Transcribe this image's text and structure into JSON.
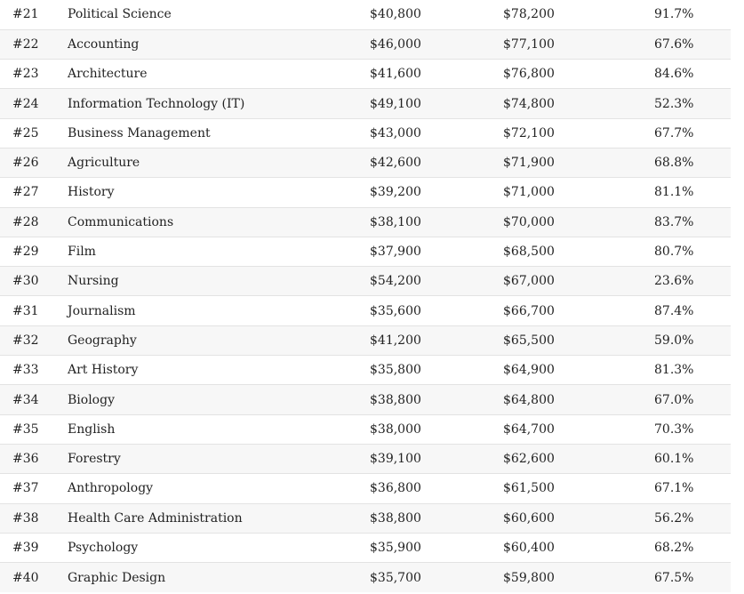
{
  "rows": [
    {
      "rank": "#21",
      "major": "Political Science",
      "early_pay": "$40,800",
      "mid_pay": "$78,200",
      "meaning": "91.7%"
    },
    {
      "rank": "#22",
      "major": "Accounting",
      "early_pay": "$46,000",
      "mid_pay": "$77,100",
      "meaning": "67.6%"
    },
    {
      "rank": "#23",
      "major": "Architecture",
      "early_pay": "$41,600",
      "mid_pay": "$76,800",
      "meaning": "84.6%"
    },
    {
      "rank": "#24",
      "major": "Information Technology (IT)",
      "early_pay": "$49,100",
      "mid_pay": "$74,800",
      "meaning": "52.3%"
    },
    {
      "rank": "#25",
      "major": "Business Management",
      "early_pay": "$43,000",
      "mid_pay": "$72,100",
      "meaning": "67.7%"
    },
    {
      "rank": "#26",
      "major": "Agriculture",
      "early_pay": "$42,600",
      "mid_pay": "$71,900",
      "meaning": "68.8%"
    },
    {
      "rank": "#27",
      "major": "History",
      "early_pay": "$39,200",
      "mid_pay": "$71,000",
      "meaning": "81.1%"
    },
    {
      "rank": "#28",
      "major": "Communications",
      "early_pay": "$38,100",
      "mid_pay": "$70,000",
      "meaning": "83.7%"
    },
    {
      "rank": "#29",
      "major": "Film",
      "early_pay": "$37,900",
      "mid_pay": "$68,500",
      "meaning": "80.7%"
    },
    {
      "rank": "#30",
      "major": "Nursing",
      "early_pay": "$54,200",
      "mid_pay": "$67,000",
      "meaning": "23.6%"
    },
    {
      "rank": "#31",
      "major": "Journalism",
      "early_pay": "$35,600",
      "mid_pay": "$66,700",
      "meaning": "87.4%"
    },
    {
      "rank": "#32",
      "major": "Geography",
      "early_pay": "$41,200",
      "mid_pay": "$65,500",
      "meaning": "59.0%"
    },
    {
      "rank": "#33",
      "major": "Art History",
      "early_pay": "$35,800",
      "mid_pay": "$64,900",
      "meaning": "81.3%"
    },
    {
      "rank": "#34",
      "major": "Biology",
      "early_pay": "$38,800",
      "mid_pay": "$64,800",
      "meaning": "67.0%"
    },
    {
      "rank": "#35",
      "major": "English",
      "early_pay": "$38,000",
      "mid_pay": "$64,700",
      "meaning": "70.3%"
    },
    {
      "rank": "#36",
      "major": "Forestry",
      "early_pay": "$39,100",
      "mid_pay": "$62,600",
      "meaning": "60.1%"
    },
    {
      "rank": "#37",
      "major": "Anthropology",
      "early_pay": "$36,800",
      "mid_pay": "$61,500",
      "meaning": "67.1%"
    },
    {
      "rank": "#38",
      "major": "Health Care Administration",
      "early_pay": "$38,800",
      "mid_pay": "$60,600",
      "meaning": "56.2%"
    },
    {
      "rank": "#39",
      "major": "Psychology",
      "early_pay": "$35,900",
      "mid_pay": "$60,400",
      "meaning": "68.2%"
    },
    {
      "rank": "#40",
      "major": "Graphic Design",
      "early_pay": "$35,700",
      "mid_pay": "$59,800",
      "meaning": "67.5%"
    }
  ]
}
